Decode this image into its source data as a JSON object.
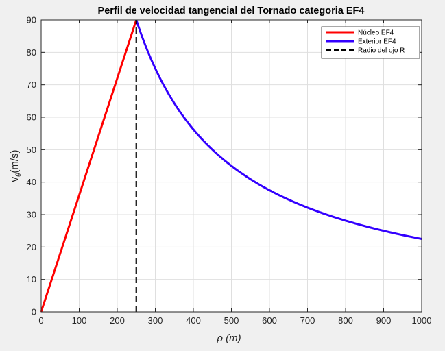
{
  "chart_data": {
    "type": "line",
    "title": "Perfil de velocidad tangencial del Tornado categoria EF4",
    "xlabel": "ρ  (m)",
    "ylabel": "v",
    "ylabel_sub": "θ",
    "ylabel_unit": "(m/s)",
    "xlim": [
      0,
      1000
    ],
    "ylim": [
      0,
      90
    ],
    "xticks": [
      0,
      100,
      200,
      300,
      400,
      500,
      600,
      700,
      800,
      900,
      1000
    ],
    "yticks": [
      0,
      10,
      20,
      30,
      40,
      50,
      60,
      70,
      80,
      90
    ],
    "grid": true,
    "legend_position": "top-right",
    "series": [
      {
        "name": "Núcleo EF4",
        "color": "#ff0000",
        "style": "solid",
        "x": [
          0,
          50,
          100,
          150,
          200,
          250
        ],
        "y": [
          0,
          18,
          36,
          54,
          72,
          90
        ]
      },
      {
        "name": "Exterior EF4",
        "color": "#3300ff",
        "style": "solid",
        "x": [
          250,
          275,
          300,
          325,
          350,
          375,
          400,
          450,
          500,
          550,
          600,
          650,
          700,
          750,
          800,
          850,
          900,
          950,
          1000
        ],
        "y": [
          90,
          81.8,
          75,
          69.2,
          64.3,
          60,
          56.25,
          50,
          45,
          40.9,
          37.5,
          34.6,
          32.1,
          30,
          28.1,
          26.5,
          25,
          23.7,
          22.5
        ]
      },
      {
        "name": "Radio del ojo R",
        "color": "#000000",
        "style": "dashed",
        "x": [
          250,
          250
        ],
        "y": [
          0,
          90
        ]
      }
    ]
  }
}
